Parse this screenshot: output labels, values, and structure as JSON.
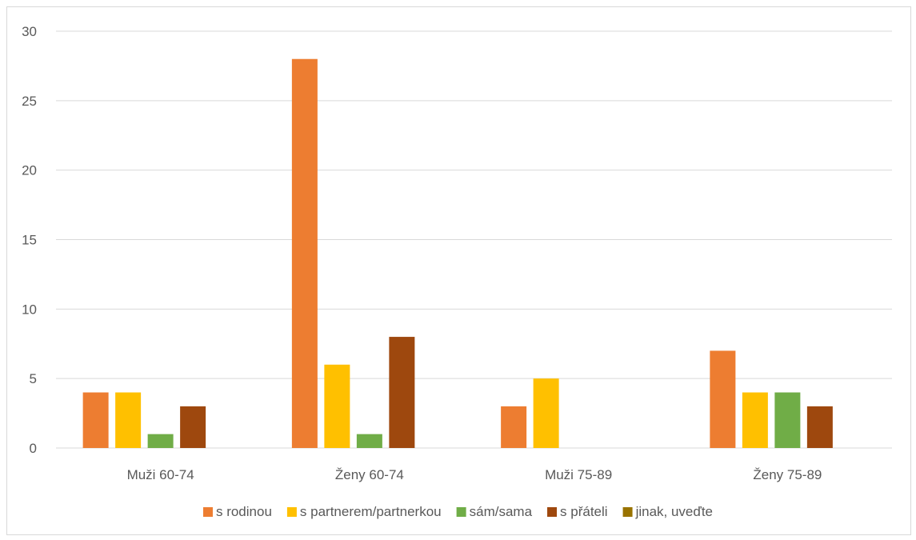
{
  "chart_data": {
    "type": "bar",
    "categories": [
      "Muži 60-74",
      "Ženy 60-74",
      "Muži 75-89",
      "Ženy 75-89"
    ],
    "series": [
      {
        "name": "s rodinou",
        "color": "#ED7D31",
        "values": [
          4,
          28,
          3,
          7
        ]
      },
      {
        "name": "s partnerem/partnerkou",
        "color": "#FFC000",
        "values": [
          4,
          6,
          5,
          4
        ]
      },
      {
        "name": "sám/sama",
        "color": "#70AD47",
        "values": [
          1,
          1,
          0,
          4
        ]
      },
      {
        "name": "s přáteli",
        "color": "#9E480E",
        "values": [
          3,
          8,
          0,
          3
        ]
      },
      {
        "name": "jinak, uveďte",
        "color": "#997300",
        "values": [
          0,
          0,
          0,
          0
        ]
      }
    ],
    "ylim": [
      0,
      30
    ],
    "yticks": [
      0,
      5,
      10,
      15,
      20,
      25,
      30
    ],
    "grid": true,
    "legend_position": "bottom",
    "gridline_color": "#d9d9d9"
  }
}
